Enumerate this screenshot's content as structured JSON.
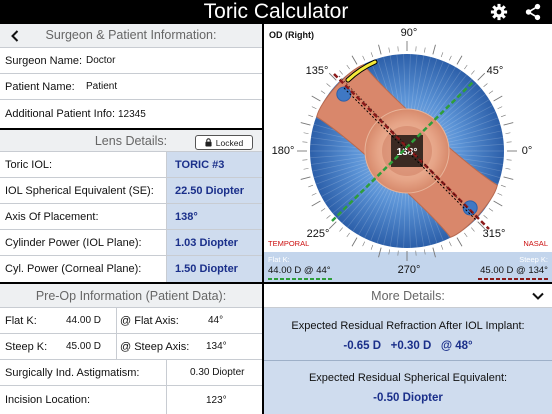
{
  "app": {
    "title": "Toric Calculator"
  },
  "surgeon_section": {
    "header": "Surgeon & Patient Information:",
    "rows": [
      {
        "label": "Surgeon Name:",
        "value": "Doctor"
      },
      {
        "label": "Patient Name:",
        "value": "Patient"
      },
      {
        "label": "Additional Patient Info:",
        "value": "12345"
      }
    ]
  },
  "lens_section": {
    "header": "Lens Details:",
    "locked_label": "Locked",
    "rows": [
      {
        "label": "Toric IOL:",
        "value": "TORIC #3"
      },
      {
        "label": "IOL Spherical Equivalent (SE):",
        "value": "22.50 Diopter"
      },
      {
        "label": "Axis Of Placement:",
        "value": "138°"
      },
      {
        "label": "Cylinder Power (IOL Plane):",
        "value": "1.03 Diopter"
      },
      {
        "label": "Cyl. Power (Corneal Plane):",
        "value": "1.50 Diopter"
      }
    ]
  },
  "preop_section": {
    "header": "Pre-Op Information (Patient Data):",
    "flat_k": {
      "label": "Flat K:",
      "value": "44.00 D",
      "axis_label": "@ Flat Axis:",
      "axis_value": "44°"
    },
    "steep_k": {
      "label": "Steep K:",
      "value": "45.00 D",
      "axis_label": "@ Steep Axis:",
      "axis_value": "134°"
    },
    "sia": {
      "label": "Surgically Ind. Astigmatism:",
      "value": "0.30 Diopter"
    },
    "incision": {
      "label": "Incision Location:",
      "value": "123°"
    }
  },
  "diagram": {
    "eye_label": "OD (Right)",
    "angles": {
      "a90": "90°",
      "a45": "45°",
      "a0": "0°",
      "a315": "315°",
      "a270": "270°",
      "a225": "225°",
      "a180": "180°",
      "a135": "135°"
    },
    "center_label": "138°",
    "temporal": "TEMPORAL",
    "nasal": "NASAL",
    "flat_k_caption": "Flat K:",
    "flat_k_value": "44.00 D @ 44°",
    "steep_k_caption": "Steep K:",
    "steep_k_value": "45.00 D @ 134°",
    "colors": {
      "flat": "#2e9e3a",
      "steep": "#8b1a1a",
      "lens": "#d9876b",
      "iris": "#3f78c4"
    }
  },
  "more_details": {
    "header": "More Details:",
    "residual_refraction_title": "Expected Residual Refraction After IOL Implant:",
    "residual_refraction_value": "-0.65 D   +0.30 D   @ 48°",
    "residual_se_title": "Expected Residual Spherical Equivalent:",
    "residual_se_value": "-0.50 Diopter"
  }
}
